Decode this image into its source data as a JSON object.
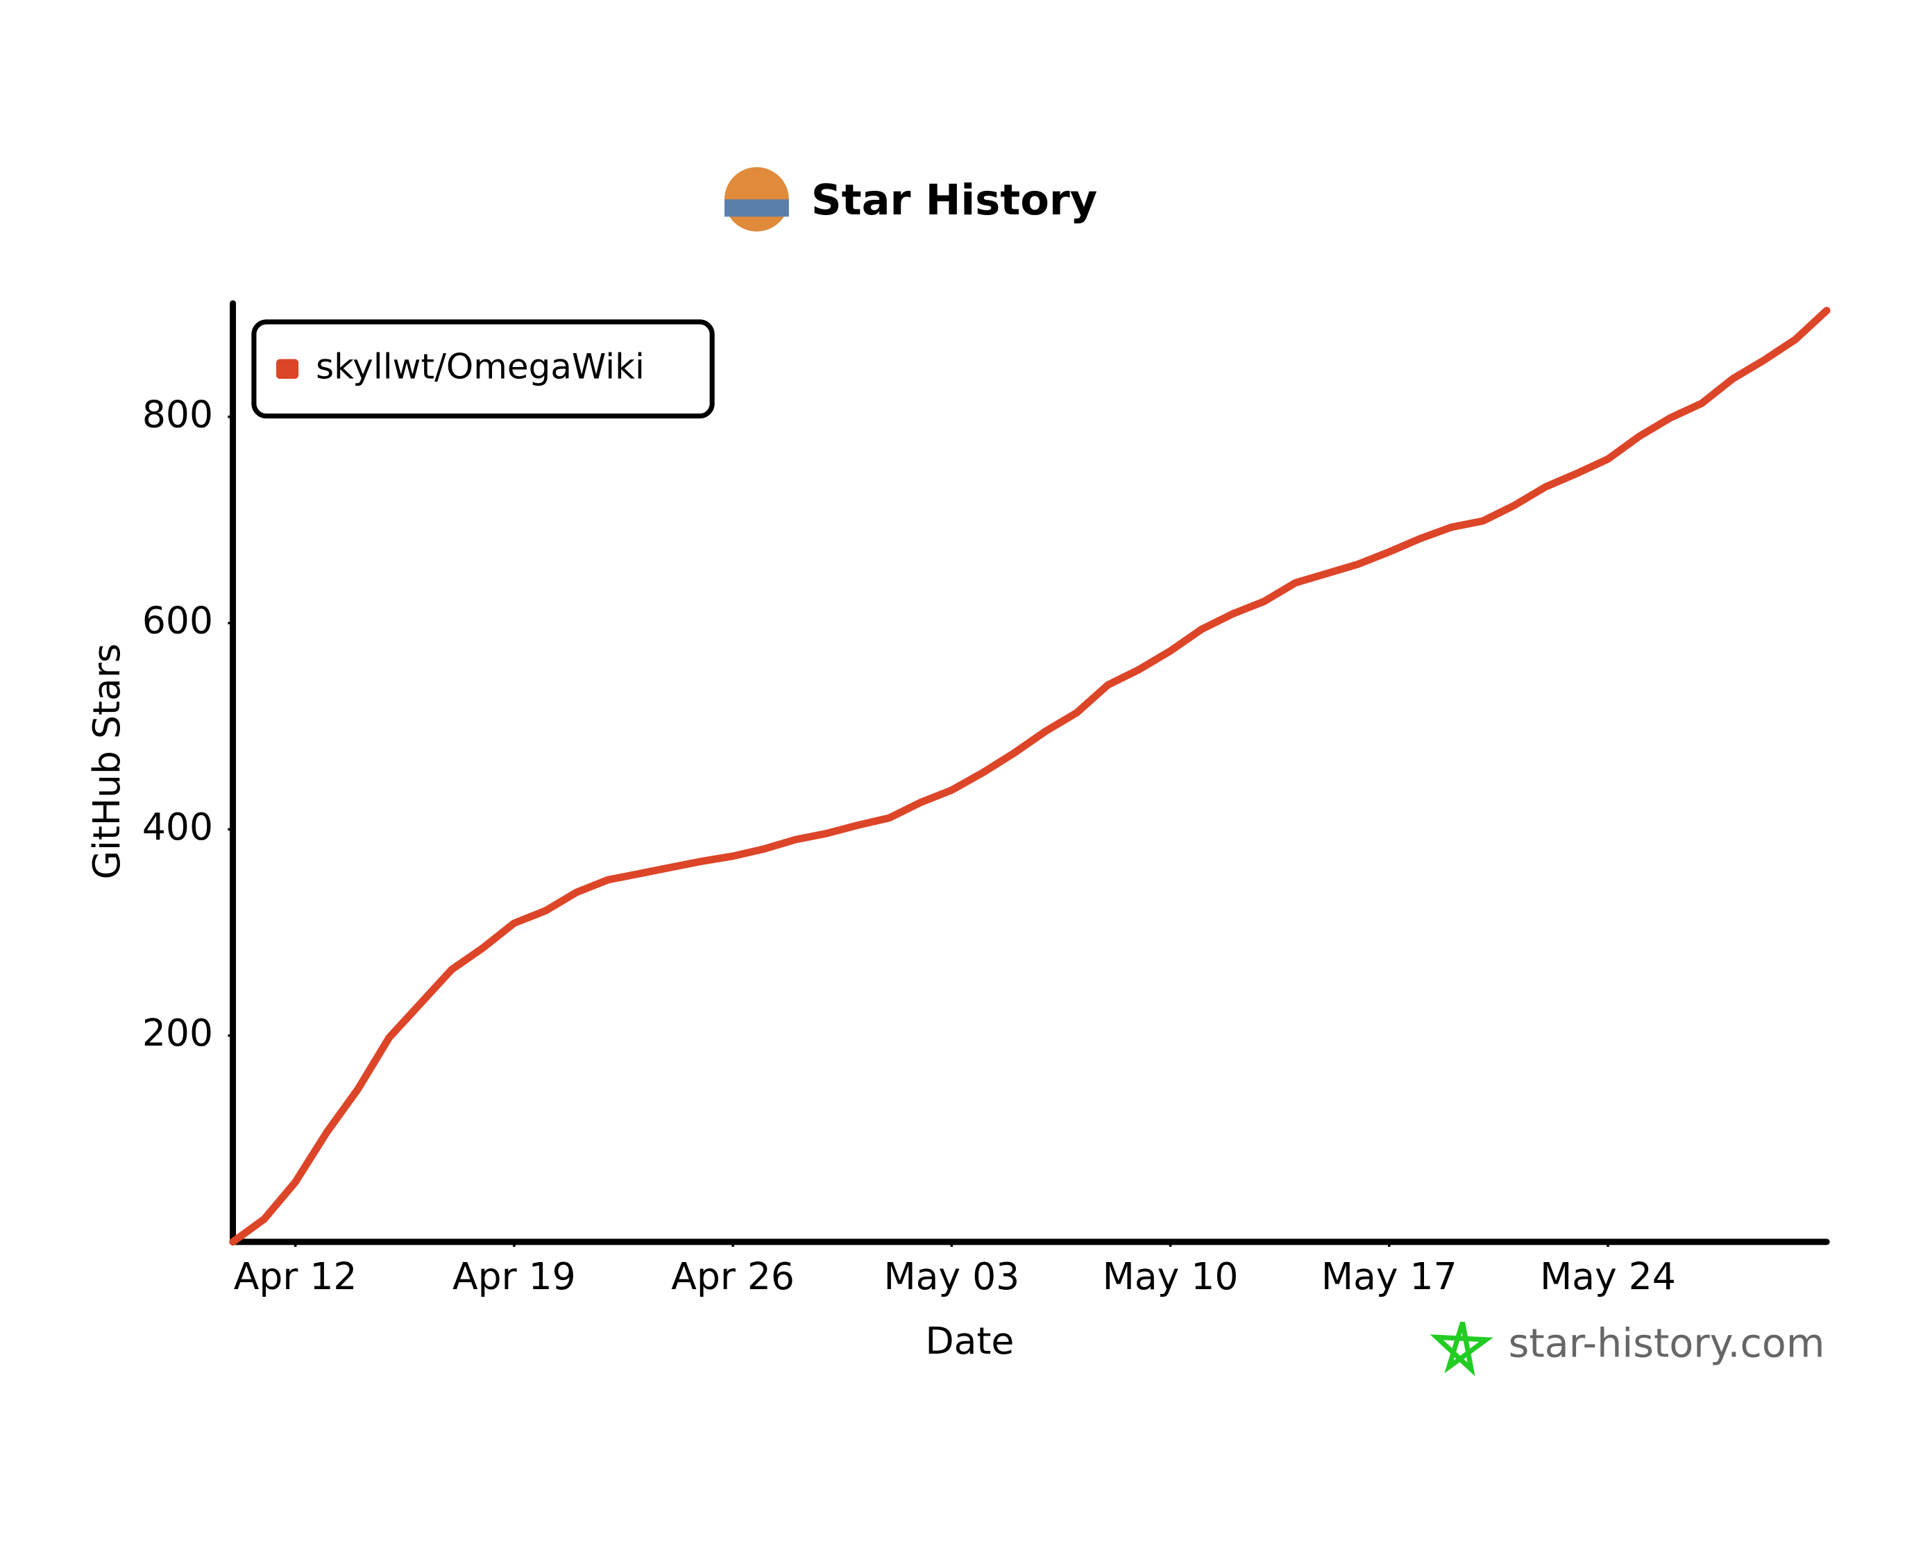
{
  "chart_data": {
    "type": "line",
    "title": "Star History",
    "x": [
      "Apr 10",
      "Apr 11",
      "Apr 12",
      "Apr 13",
      "Apr 14",
      "Apr 15",
      "Apr 16",
      "Apr 17",
      "Apr 18",
      "Apr 19",
      "Apr 20",
      "Apr 21",
      "Apr 22",
      "Apr 23",
      "Apr 24",
      "Apr 25",
      "Apr 26",
      "Apr 27",
      "Apr 28",
      "Apr 29",
      "Apr 30",
      "May 01",
      "May 02",
      "May 03",
      "May 04",
      "May 05",
      "May 06",
      "May 07",
      "May 08",
      "May 09",
      "May 10",
      "May 11",
      "May 12",
      "May 13",
      "May 14",
      "May 15",
      "May 16",
      "May 17",
      "May 18",
      "May 19",
      "May 20",
      "May 21",
      "May 22",
      "May 23",
      "May 24",
      "May 25",
      "May 26",
      "May 27",
      "May 28",
      "May 29",
      "May 30",
      "May 31"
    ],
    "series": [
      {
        "name": "skyllwt/OmegaWiki",
        "color": "#dd4528",
        "values": [
          0,
          22,
          58,
          106,
          148,
          198,
          231,
          264,
          285,
          309,
          321,
          339,
          351,
          357,
          363,
          369,
          374,
          381,
          390,
          396,
          404,
          411,
          426,
          438,
          455,
          474,
          495,
          513,
          540,
          555,
          573,
          594,
          609,
          621,
          639,
          648,
          657,
          669,
          682,
          693,
          699,
          714,
          732,
          745,
          759,
          781,
          799,
          813,
          837,
          855,
          875,
          903
        ]
      }
    ],
    "xticks": [
      "Apr 12",
      "Apr 19",
      "Apr 26",
      "May 03",
      "May 10",
      "May 17",
      "May 24"
    ],
    "ylim": [
      0,
      910
    ],
    "yticks": [
      200,
      400,
      600,
      800
    ],
    "x_label": "Date",
    "y_label": "GitHub Stars",
    "legend": "top-left",
    "watermark": "star-history.com"
  }
}
